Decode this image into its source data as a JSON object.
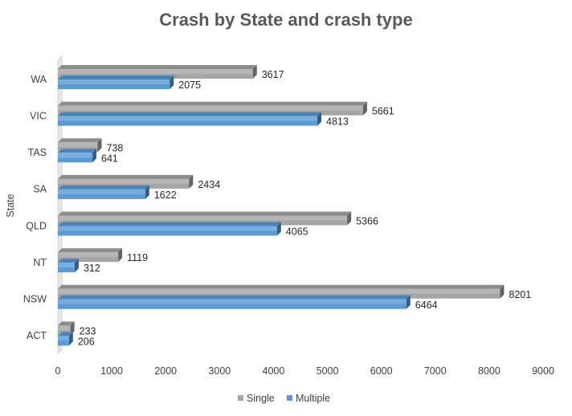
{
  "chart_data": {
    "type": "bar",
    "orientation": "horizontal",
    "title": "Crash by State and crash type",
    "ylabel": "State",
    "xlabel": "",
    "categories": [
      "ACT",
      "NSW",
      "NT",
      "QLD",
      "SA",
      "TAS",
      "VIC",
      "WA"
    ],
    "series": [
      {
        "name": "Single",
        "values": [
          233,
          8201,
          1119,
          5366,
          2434,
          738,
          5661,
          3617
        ],
        "color": "#a5a5a5"
      },
      {
        "name": "Multiple",
        "values": [
          206,
          6464,
          312,
          4065,
          1622,
          641,
          4813,
          2075
        ],
        "color": "#5b9bd5"
      }
    ],
    "xlim": [
      0,
      9000
    ],
    "xticks": [
      "0",
      "1000",
      "2000",
      "3000",
      "4000",
      "5000",
      "6000",
      "7000",
      "8000",
      "9000"
    ],
    "legend": "bottom",
    "grid": false,
    "style": "3d"
  }
}
